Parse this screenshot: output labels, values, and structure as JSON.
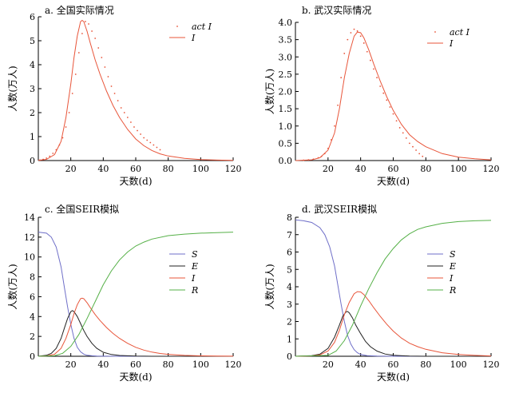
{
  "chart_data": [
    {
      "id": "a",
      "type": "line",
      "title": "a. 全国实际情况",
      "xlabel": "天数(d)",
      "ylabel": "人数(万人)",
      "xlim": [
        0,
        120
      ],
      "ylim": [
        0,
        6
      ],
      "xticks": [
        20,
        40,
        60,
        80,
        100,
        120
      ],
      "yticks": [
        0,
        1,
        2,
        3,
        4,
        5,
        6
      ],
      "legend_position": "top-right",
      "series": [
        {
          "name": "act I",
          "style": "dots",
          "color": "#e8553a",
          "x": [
            1,
            3,
            5,
            7,
            9,
            11,
            13,
            15,
            17,
            19,
            21,
            23,
            25,
            27,
            29,
            31,
            33,
            35,
            37,
            39,
            41,
            43,
            45,
            47,
            49,
            51,
            53,
            55,
            57,
            59,
            61,
            63,
            65,
            67,
            69,
            71,
            73,
            75
          ],
          "y": [
            0.02,
            0.05,
            0.1,
            0.18,
            0.3,
            0.45,
            0.65,
            0.95,
            1.4,
            2.0,
            2.8,
            3.6,
            4.5,
            5.3,
            5.8,
            5.7,
            5.4,
            5.1,
            4.7,
            4.3,
            3.9,
            3.5,
            3.1,
            2.8,
            2.5,
            2.2,
            2.0,
            1.8,
            1.6,
            1.4,
            1.25,
            1.1,
            0.95,
            0.85,
            0.75,
            0.65,
            0.55,
            0.45
          ]
        },
        {
          "name": "I",
          "style": "line",
          "color": "#e8553a",
          "x": [
            0,
            5,
            10,
            14,
            17,
            20,
            22,
            24,
            26,
            27,
            28,
            30,
            32,
            35,
            38,
            42,
            46,
            50,
            55,
            60,
            65,
            70,
            75,
            80,
            90,
            100,
            110,
            120
          ],
          "y": [
            0.01,
            0.05,
            0.25,
            0.8,
            1.8,
            3.2,
            4.3,
            5.2,
            5.8,
            5.85,
            5.8,
            5.4,
            4.9,
            4.2,
            3.6,
            2.9,
            2.3,
            1.8,
            1.3,
            0.9,
            0.62,
            0.42,
            0.28,
            0.19,
            0.09,
            0.04,
            0.02,
            0.01
          ]
        }
      ]
    },
    {
      "id": "b",
      "type": "line",
      "title": "b. 武汉实际情况",
      "xlabel": "天数(d)",
      "ylabel": "人数(万人)",
      "xlim": [
        0,
        120
      ],
      "ylim": [
        0,
        4
      ],
      "xticks": [
        20,
        40,
        60,
        80,
        100,
        120
      ],
      "yticks": [
        0,
        0.5,
        1.0,
        1.5,
        2.0,
        2.5,
        3.0,
        3.5,
        4.0
      ],
      "legend_position": "top-right",
      "series": [
        {
          "name": "act I",
          "style": "dots",
          "color": "#e8553a",
          "x": [
            5,
            8,
            11,
            14,
            16,
            18,
            20,
            22,
            24,
            26,
            28,
            30,
            32,
            34,
            36,
            38,
            40,
            42,
            44,
            46,
            48,
            50,
            52,
            54,
            56,
            58,
            60,
            62,
            64,
            66,
            68,
            70,
            72,
            74,
            76,
            78
          ],
          "y": [
            0.01,
            0.02,
            0.04,
            0.08,
            0.12,
            0.2,
            0.35,
            0.6,
            1.0,
            1.6,
            2.4,
            3.1,
            3.5,
            3.7,
            3.8,
            3.75,
            3.6,
            3.4,
            3.15,
            2.9,
            2.65,
            2.4,
            2.15,
            1.95,
            1.75,
            1.55,
            1.35,
            1.15,
            0.95,
            0.8,
            0.65,
            0.5,
            0.4,
            0.3,
            0.2,
            0.12
          ]
        },
        {
          "name": "I",
          "style": "line",
          "color": "#e8553a",
          "x": [
            0,
            10,
            15,
            20,
            24,
            27,
            30,
            33,
            36,
            38,
            40,
            42,
            45,
            48,
            52,
            56,
            60,
            65,
            70,
            75,
            80,
            90,
            100,
            110,
            120
          ],
          "y": [
            0.0,
            0.02,
            0.08,
            0.3,
            0.8,
            1.5,
            2.4,
            3.1,
            3.6,
            3.72,
            3.7,
            3.55,
            3.2,
            2.8,
            2.3,
            1.85,
            1.45,
            1.05,
            0.75,
            0.55,
            0.4,
            0.2,
            0.1,
            0.05,
            0.02
          ]
        }
      ]
    },
    {
      "id": "c",
      "type": "line",
      "title": "c. 全国SEIR模拟",
      "xlabel": "天数(d)",
      "ylabel": "人数(万人)",
      "xlim": [
        0,
        120
      ],
      "ylim": [
        0,
        14
      ],
      "xticks": [
        20,
        40,
        60,
        80,
        100,
        120
      ],
      "yticks": [
        0,
        2,
        4,
        6,
        8,
        10,
        12,
        14
      ],
      "legend_position": "right",
      "series": [
        {
          "name": "S",
          "style": "line",
          "color": "#6f6fc8",
          "x": [
            0,
            5,
            8,
            11,
            14,
            16,
            18,
            20,
            22,
            24,
            26,
            28,
            30,
            33,
            36,
            40,
            50,
            60,
            80,
            100,
            120
          ],
          "y": [
            12.5,
            12.4,
            12.0,
            11.0,
            9.0,
            7.0,
            5.0,
            3.2,
            1.8,
            0.9,
            0.45,
            0.22,
            0.1,
            0.05,
            0.02,
            0.01,
            0,
            0,
            0,
            0,
            0
          ]
        },
        {
          "name": "E",
          "style": "line",
          "color": "#222222",
          "x": [
            0,
            5,
            8,
            11,
            14,
            16,
            18,
            20,
            21,
            22,
            24,
            26,
            28,
            30,
            33,
            36,
            40,
            45,
            50,
            60,
            70,
            80,
            100,
            120
          ],
          "y": [
            0.0,
            0.1,
            0.3,
            0.8,
            1.8,
            2.8,
            3.8,
            4.5,
            4.6,
            4.5,
            4.0,
            3.3,
            2.6,
            2.0,
            1.3,
            0.8,
            0.4,
            0.18,
            0.08,
            0.02,
            0,
            0,
            0,
            0
          ]
        },
        {
          "name": "I",
          "style": "line",
          "color": "#e8553a",
          "x": [
            0,
            5,
            10,
            14,
            17,
            20,
            22,
            24,
            26,
            27,
            28,
            30,
            32,
            35,
            38,
            42,
            46,
            50,
            55,
            60,
            65,
            70,
            75,
            80,
            90,
            100,
            110,
            120
          ],
          "y": [
            0.0,
            0.03,
            0.2,
            0.8,
            1.8,
            3.2,
            4.3,
            5.2,
            5.8,
            5.85,
            5.8,
            5.4,
            4.9,
            4.2,
            3.6,
            2.9,
            2.3,
            1.8,
            1.3,
            0.9,
            0.62,
            0.42,
            0.28,
            0.19,
            0.09,
            0.04,
            0.02,
            0.01
          ]
        },
        {
          "name": "R",
          "style": "line",
          "color": "#55b047",
          "x": [
            0,
            10,
            15,
            20,
            25,
            30,
            35,
            40,
            45,
            50,
            55,
            60,
            65,
            70,
            80,
            90,
            100,
            110,
            120
          ],
          "y": [
            0.0,
            0.05,
            0.3,
            1.0,
            2.2,
            3.8,
            5.5,
            7.2,
            8.6,
            9.7,
            10.5,
            11.1,
            11.5,
            11.8,
            12.15,
            12.3,
            12.4,
            12.45,
            12.5
          ]
        }
      ]
    },
    {
      "id": "d",
      "type": "line",
      "title": "d. 武汉SEIR模拟",
      "xlabel": "天数(d)",
      "ylabel": "人数(万人)",
      "xlim": [
        0,
        120
      ],
      "ylim": [
        0,
        8
      ],
      "xticks": [
        20,
        40,
        60,
        80,
        100,
        120
      ],
      "yticks": [
        0,
        1,
        2,
        3,
        4,
        5,
        6,
        7,
        8
      ],
      "legend_position": "right",
      "series": [
        {
          "name": "S",
          "style": "line",
          "color": "#6f6fc8",
          "x": [
            0,
            5,
            10,
            15,
            18,
            21,
            24,
            26,
            28,
            30,
            32,
            34,
            36,
            38,
            40,
            44,
            50,
            60,
            80,
            100,
            120
          ],
          "y": [
            7.85,
            7.8,
            7.7,
            7.4,
            7.0,
            6.3,
            5.2,
            4.1,
            3.0,
            2.0,
            1.2,
            0.7,
            0.38,
            0.2,
            0.1,
            0.03,
            0.01,
            0,
            0,
            0,
            0
          ]
        },
        {
          "name": "E",
          "style": "line",
          "color": "#222222",
          "x": [
            0,
            10,
            15,
            20,
            24,
            27,
            29,
            31,
            32,
            33,
            35,
            37,
            40,
            43,
            46,
            50,
            55,
            60,
            70,
            80,
            100,
            120
          ],
          "y": [
            0.0,
            0.03,
            0.12,
            0.45,
            1.1,
            1.8,
            2.3,
            2.55,
            2.58,
            2.5,
            2.2,
            1.8,
            1.3,
            0.85,
            0.55,
            0.3,
            0.13,
            0.06,
            0.01,
            0,
            0,
            0
          ]
        },
        {
          "name": "I",
          "style": "line",
          "color": "#e8553a",
          "x": [
            0,
            10,
            15,
            20,
            24,
            27,
            30,
            33,
            36,
            38,
            40,
            42,
            45,
            48,
            52,
            56,
            60,
            65,
            70,
            75,
            80,
            90,
            100,
            110,
            120
          ],
          "y": [
            0.0,
            0.02,
            0.08,
            0.3,
            0.8,
            1.5,
            2.4,
            3.1,
            3.6,
            3.72,
            3.7,
            3.55,
            3.2,
            2.8,
            2.3,
            1.85,
            1.45,
            1.05,
            0.75,
            0.55,
            0.4,
            0.2,
            0.1,
            0.05,
            0.02
          ]
        },
        {
          "name": "R",
          "style": "line",
          "color": "#55b047",
          "x": [
            0,
            20,
            25,
            30,
            35,
            40,
            45,
            50,
            55,
            60,
            65,
            70,
            75,
            80,
            90,
            100,
            110,
            120
          ],
          "y": [
            0.0,
            0.05,
            0.3,
            0.9,
            1.8,
            2.9,
            3.9,
            4.8,
            5.6,
            6.2,
            6.7,
            7.05,
            7.3,
            7.45,
            7.65,
            7.75,
            7.8,
            7.82
          ]
        }
      ]
    }
  ]
}
